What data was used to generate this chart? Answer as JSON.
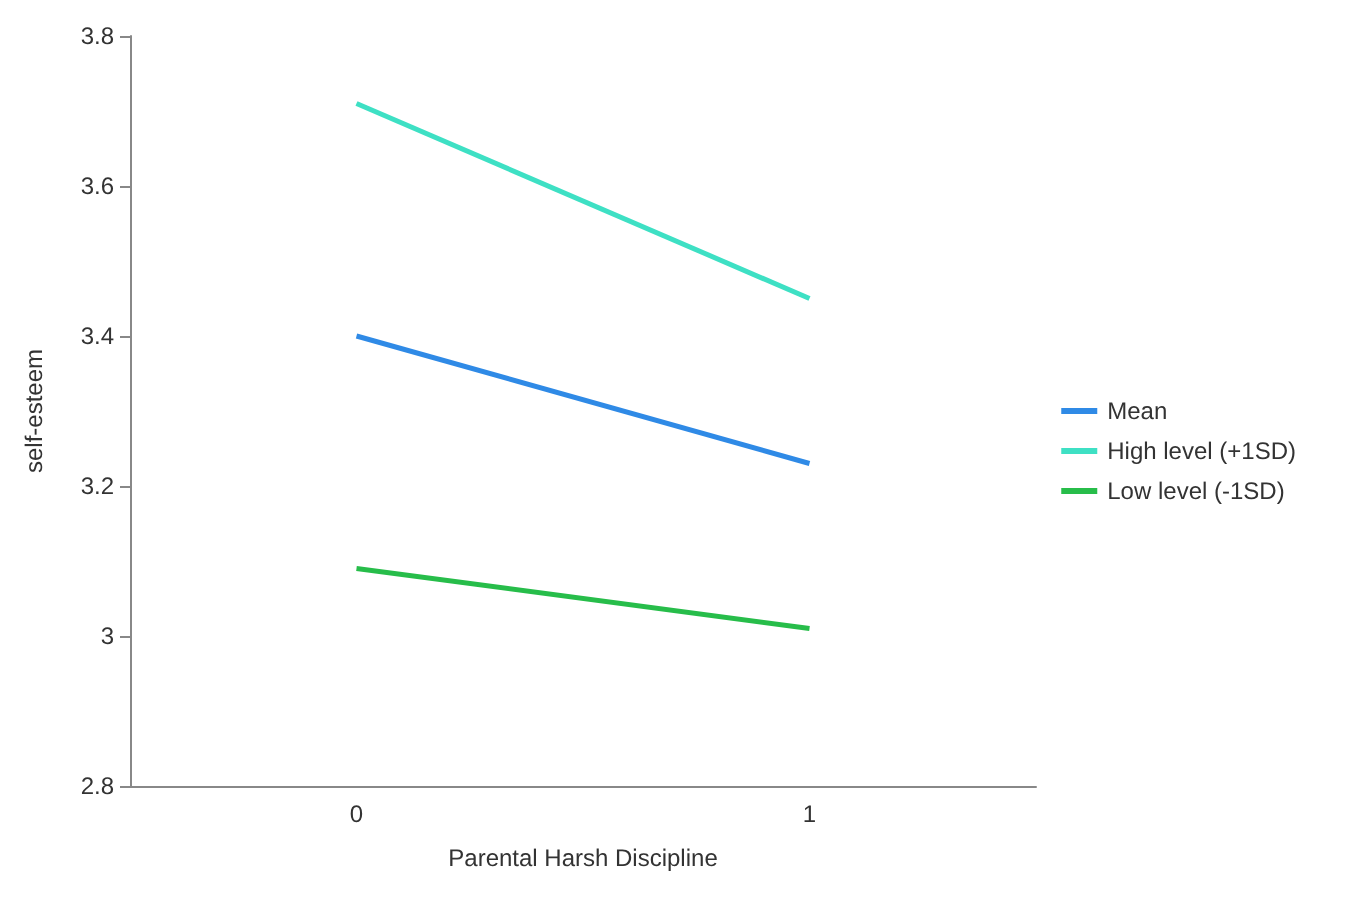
{
  "chart_data": {
    "type": "line",
    "xlabel": "Parental Harsh Discipline",
    "ylabel": "self-esteem",
    "categories": [
      "0",
      "1"
    ],
    "series": [
      {
        "name": "Mean",
        "color": "#2f8ae6",
        "values": [
          3.4,
          3.23
        ]
      },
      {
        "name": "High level (+1SD)",
        "color": "#3ee0c4",
        "values": [
          3.71,
          3.45
        ]
      },
      {
        "name": "Low level (-1SD)",
        "color": "#27bd4a",
        "values": [
          3.09,
          3.01
        ]
      }
    ],
    "ylim": [
      2.8,
      3.8
    ],
    "yticks": [
      2.8,
      3,
      3.2,
      3.4,
      3.6,
      3.8
    ],
    "grid": false,
    "legend": "right",
    "marker": "none"
  }
}
